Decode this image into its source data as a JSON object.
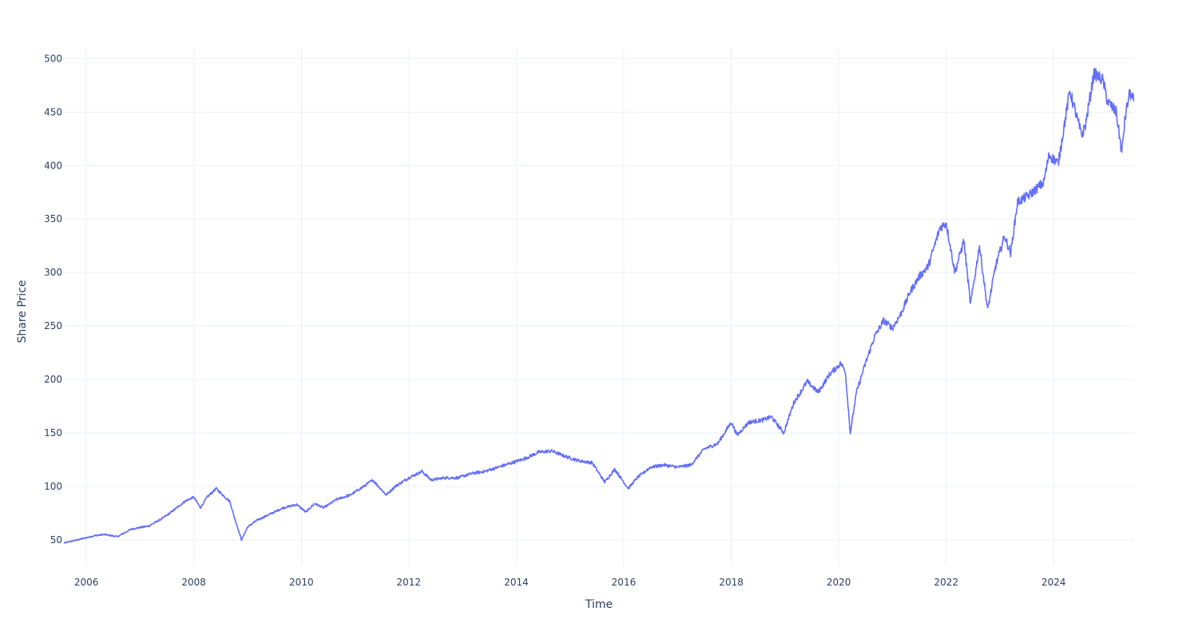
{
  "chart_data": {
    "type": "line",
    "title": "",
    "xlabel": "Time",
    "ylabel": "Share Price",
    "x_ticks": [
      "2006",
      "2008",
      "2010",
      "2012",
      "2014",
      "2016",
      "2018",
      "2020",
      "2022",
      "2024"
    ],
    "y_ticks": [
      50,
      100,
      150,
      200,
      250,
      300,
      350,
      400,
      450,
      500
    ],
    "xlim": [
      "2005-08-01",
      "2025-07-01"
    ],
    "ylim": [
      26,
      510
    ],
    "grid": true,
    "line_color": "#636efa",
    "series": [
      {
        "x": [
          "2005-08-01",
          "2005-10-01",
          "2005-12-01",
          "2006-03-01",
          "2006-05-01",
          "2006-08-01",
          "2006-11-01",
          "2007-03-01",
          "2007-06-01",
          "2007-08-01",
          "2007-11-01",
          "2008-01-01",
          "2008-02-15",
          "2008-04-01",
          "2008-06-01",
          "2008-07-15",
          "2008-09-01",
          "2008-10-01",
          "2008-11-20",
          "2009-01-01",
          "2009-03-01",
          "2009-06-01",
          "2009-09-01",
          "2009-12-01",
          "2010-02-01",
          "2010-04-01",
          "2010-06-01",
          "2010-09-01",
          "2010-12-01",
          "2011-03-01",
          "2011-05-01",
          "2011-08-01",
          "2011-10-01",
          "2012-01-01",
          "2012-04-01",
          "2012-06-01",
          "2012-09-01",
          "2012-12-01",
          "2013-03-01",
          "2013-06-01",
          "2013-09-01",
          "2013-12-01",
          "2014-03-01",
          "2014-06-01",
          "2014-09-01",
          "2014-12-01",
          "2015-03-01",
          "2015-06-01",
          "2015-08-25",
          "2015-11-01",
          "2016-02-01",
          "2016-04-01",
          "2016-07-01",
          "2016-10-01",
          "2017-01-01",
          "2017-04-01",
          "2017-07-01",
          "2017-10-01",
          "2018-01-01",
          "2018-02-10",
          "2018-05-01",
          "2018-08-01",
          "2018-10-01",
          "2018-12-24",
          "2019-03-01",
          "2019-06-01",
          "2019-08-15",
          "2019-11-01",
          "2020-01-15",
          "2020-02-15",
          "2020-03-20",
          "2020-05-01",
          "2020-07-01",
          "2020-09-01",
          "2020-11-01",
          "2021-01-01",
          "2021-03-01",
          "2021-05-01",
          "2021-07-01",
          "2021-09-01",
          "2021-11-20",
          "2022-01-01",
          "2022-03-01",
          "2022-05-01",
          "2022-06-15",
          "2022-08-15",
          "2022-10-10",
          "2022-12-01",
          "2023-02-01",
          "2023-03-15",
          "2023-05-01",
          "2023-07-15",
          "2023-10-25",
          "2023-12-01",
          "2024-02-01",
          "2024-04-20",
          "2024-07-10",
          "2024-08-05",
          "2024-10-01",
          "2024-12-01",
          "2025-01-01",
          "2025-03-01",
          "2025-04-08",
          "2025-05-01",
          "2025-06-01",
          "2025-07-01"
        ],
        "values": [
          47,
          49,
          51,
          54,
          55,
          53,
          60,
          63,
          70,
          76,
          86,
          90,
          80,
          90,
          98,
          92,
          86,
          72,
          50,
          62,
          68,
          74,
          80,
          83,
          76,
          84,
          80,
          88,
          92,
          100,
          106,
          92,
          100,
          108,
          114,
          106,
          108,
          108,
          112,
          114,
          118,
          122,
          126,
          132,
          133,
          128,
          124,
          122,
          104,
          116,
          98,
          108,
          118,
          120,
          118,
          120,
          135,
          140,
          160,
          148,
          160,
          162,
          165,
          150,
          178,
          198,
          188,
          205,
          215,
          208,
          150,
          188,
          215,
          240,
          255,
          248,
          262,
          282,
          296,
          306,
          342,
          346,
          300,
          330,
          270,
          325,
          265,
          305,
          334,
          318,
          366,
          372,
          384,
          410,
          402,
          470,
          428,
          438,
          486,
          480,
          460,
          450,
          412,
          445,
          468,
          460
        ]
      }
    ]
  }
}
